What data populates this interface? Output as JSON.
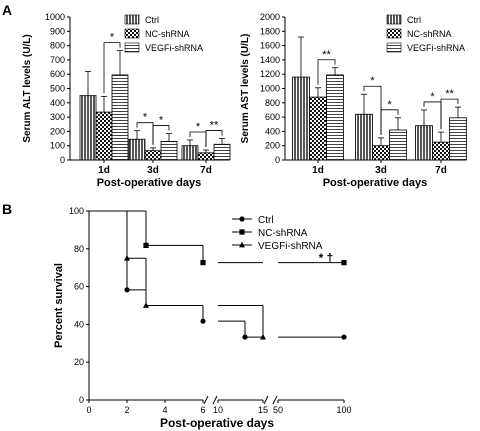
{
  "panels": {
    "a": "A",
    "b": "B"
  },
  "chart_data": [
    {
      "type": "bar",
      "ylabel": "Serum ALT levels (U/L)",
      "xlabel": "Post-operative days",
      "categories": [
        "1d",
        "3d",
        "7d"
      ],
      "ylim": [
        0,
        1000
      ],
      "yticks": [
        0,
        100,
        200,
        300,
        400,
        500,
        600,
        700,
        800,
        900,
        1000
      ],
      "legend": "top-right",
      "series": [
        {
          "name": "Ctrl",
          "values": [
            450,
            145,
            100
          ],
          "errors": [
            170,
            60,
            40
          ]
        },
        {
          "name": "NC-shRNA",
          "values": [
            335,
            65,
            50
          ],
          "errors": [
            110,
            20,
            20
          ]
        },
        {
          "name": "VEGFi-shRNA",
          "values": [
            595,
            130,
            110
          ],
          "errors": [
            170,
            55,
            40
          ]
        }
      ],
      "significance": [
        {
          "group": "1d",
          "from": 1,
          "to": 2,
          "label": "*"
        },
        {
          "group": "3d",
          "from": 0,
          "to": 1,
          "label": "*"
        },
        {
          "group": "3d",
          "from": 1,
          "to": 2,
          "label": "*"
        },
        {
          "group": "7d",
          "from": 0,
          "to": 1,
          "label": "*"
        },
        {
          "group": "7d",
          "from": 1,
          "to": 2,
          "label": "**"
        }
      ]
    },
    {
      "type": "bar",
      "ylabel": "Serum AST levels (U/L)",
      "xlabel": "Post-operative days",
      "categories": [
        "1d",
        "3d",
        "7d"
      ],
      "ylim": [
        0,
        2000
      ],
      "yticks": [
        0,
        200,
        400,
        600,
        800,
        1000,
        1200,
        1400,
        1600,
        1800,
        2000
      ],
      "legend": "top-right",
      "series": [
        {
          "name": "Ctrl",
          "values": [
            1160,
            640,
            480
          ],
          "errors": [
            560,
            280,
            220
          ]
        },
        {
          "name": "NC-shRNA",
          "values": [
            880,
            200,
            250
          ],
          "errors": [
            130,
            110,
            140
          ]
        },
        {
          "name": "VEGFi-shRNA",
          "values": [
            1190,
            420,
            590
          ],
          "errors": [
            100,
            170,
            150
          ]
        }
      ],
      "significance": [
        {
          "group": "1d",
          "from": 1,
          "to": 2,
          "label": "**"
        },
        {
          "group": "3d",
          "from": 0,
          "to": 1,
          "label": "*"
        },
        {
          "group": "3d",
          "from": 1,
          "to": 2,
          "label": "*"
        },
        {
          "group": "7d",
          "from": 0,
          "to": 1,
          "label": "*"
        },
        {
          "group": "7d",
          "from": 1,
          "to": 2,
          "label": "**"
        }
      ]
    },
    {
      "type": "line",
      "step": true,
      "ylabel": "Percent survival",
      "xlabel": "Post-operative days",
      "ylim": [
        0,
        100
      ],
      "yticks": [
        0,
        20,
        40,
        60,
        80,
        100
      ],
      "xticks": [
        "0",
        "2",
        "4",
        "6",
        "10",
        "15",
        "50",
        "100"
      ],
      "x_segments": [
        [
          0,
          6
        ],
        [
          10,
          15
        ],
        [
          50,
          100
        ]
      ],
      "legend": "top",
      "annotation": "* †",
      "series": [
        {
          "name": "Ctrl",
          "marker": "circle",
          "x": [
            0,
            2,
            2,
            3,
            3,
            6,
            6,
            13,
            13,
            100
          ],
          "y": [
            100,
            100,
            58.3,
            58.3,
            50,
            50,
            41.7,
            41.7,
            33.3,
            33.3
          ],
          "markers": [
            [
              2,
              58.3
            ],
            [
              6,
              41.7
            ],
            [
              13,
              33.3
            ],
            [
              100,
              33.3
            ]
          ]
        },
        {
          "name": "NC-shRNA",
          "marker": "square",
          "x": [
            0,
            3,
            3,
            6,
            6,
            100
          ],
          "y": [
            100,
            100,
            81.8,
            81.8,
            72.7,
            72.7
          ],
          "markers": [
            [
              3,
              81.8
            ],
            [
              6,
              72.7
            ],
            [
              100,
              72.7
            ]
          ]
        },
        {
          "name": "VEGFi-shRNA",
          "marker": "triangle",
          "x": [
            0,
            2,
            2,
            3,
            3,
            15,
            15
          ],
          "y": [
            100,
            100,
            75,
            75,
            50,
            50,
            33.3
          ],
          "markers": [
            [
              2,
              75
            ],
            [
              3,
              50
            ],
            [
              15,
              33.3
            ]
          ]
        }
      ]
    }
  ]
}
